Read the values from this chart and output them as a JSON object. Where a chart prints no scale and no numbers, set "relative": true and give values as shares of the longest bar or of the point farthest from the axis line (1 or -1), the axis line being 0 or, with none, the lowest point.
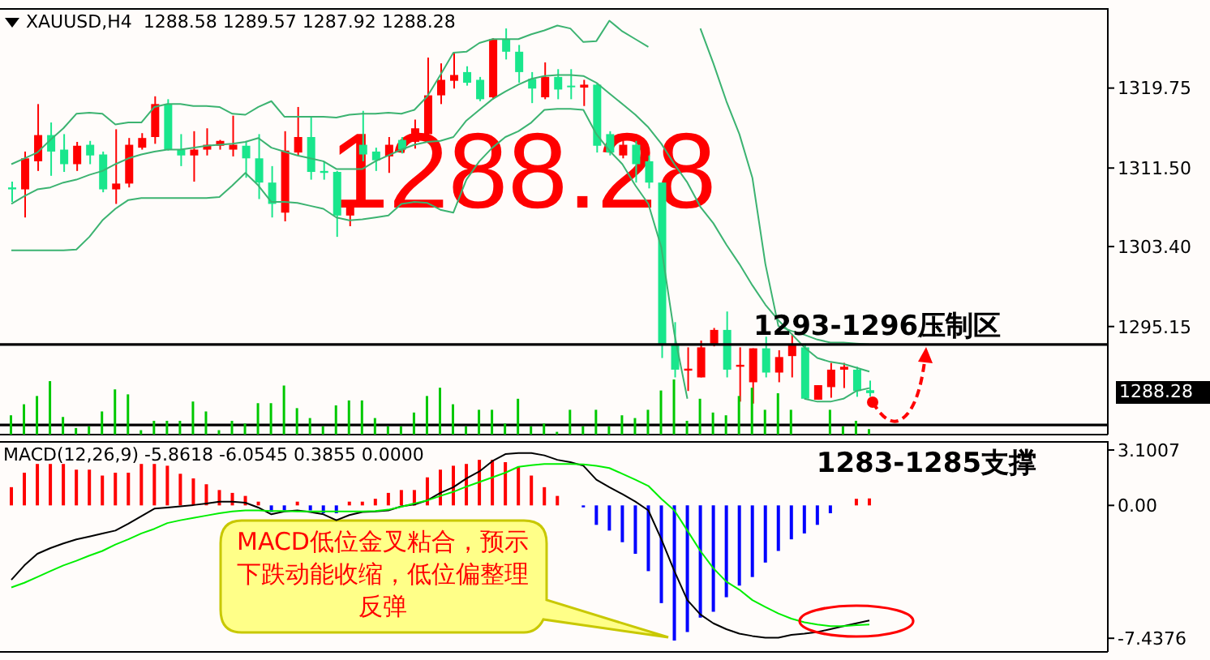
{
  "chart_data": [
    {
      "type": "candlestick",
      "title": "XAUUSD,H4  1288.58 1289.57 1287.92 1288.28",
      "categories": [
        null,
        null,
        null,
        null,
        null,
        null,
        null,
        null,
        null,
        null,
        null,
        null,
        null,
        null,
        null,
        null,
        null,
        null,
        null,
        null,
        null,
        null,
        null,
        null,
        null,
        null,
        null,
        null,
        null,
        null,
        null,
        null,
        null,
        null,
        null,
        null,
        null,
        null,
        null,
        null,
        null,
        null,
        null,
        null,
        null,
        null,
        null,
        null,
        null,
        null,
        null,
        null,
        null,
        null,
        null,
        null,
        null,
        null,
        null,
        null,
        null,
        null,
        null,
        null,
        null,
        null,
        null
      ],
      "ohlc": [
        [
          1309.5,
          1310.1,
          1308.0,
          1309.3
        ],
        [
          1309.3,
          1313.2,
          1306.4,
          1312.5
        ],
        [
          1312.2,
          1318.1,
          1311.2,
          1314.9
        ],
        [
          1314.9,
          1316.2,
          1310.7,
          1313.2
        ],
        [
          1313.4,
          1315.0,
          1311.1,
          1311.9
        ],
        [
          1311.9,
          1314.2,
          1311.2,
          1313.8
        ],
        [
          1313.9,
          1314.3,
          1311.9,
          1312.8
        ],
        [
          1312.9,
          1313.2,
          1309.0,
          1309.3
        ],
        [
          1309.3,
          1315.5,
          1307.8,
          1309.9
        ],
        [
          1309.9,
          1314.6,
          1309.5,
          1313.9
        ],
        [
          1313.6,
          1315.1,
          1313.4,
          1314.6
        ],
        [
          1314.7,
          1318.9,
          1314.0,
          1318.1
        ],
        [
          1318.1,
          1318.6,
          1313.3,
          1313.4
        ],
        [
          1313.4,
          1315.0,
          1311.7,
          1312.8
        ],
        [
          1312.8,
          1315.3,
          1310.1,
          1313.4
        ],
        [
          1313.4,
          1315.6,
          1312.8,
          1313.9
        ],
        [
          1313.8,
          1314.4,
          1313.4,
          1314.3
        ],
        [
          1313.4,
          1316.9,
          1312.7,
          1313.9
        ],
        [
          1313.8,
          1314.3,
          1310.5,
          1312.5
        ],
        [
          1312.5,
          1315.0,
          1308.3,
          1310.0
        ],
        [
          1310.0,
          1311.7,
          1306.4,
          1307.8
        ],
        [
          1306.9,
          1315.3,
          1306.0,
          1313.3
        ],
        [
          1313.1,
          1317.8,
          1312.8,
          1314.7
        ],
        [
          1314.7,
          1316.8,
          1310.3,
          1311.1
        ],
        [
          1311.2,
          1312.2,
          1310.3,
          1311.0
        ],
        [
          1311.1,
          1311.2,
          1304.4,
          1306.6
        ],
        [
          1306.6,
          1308.0,
          1305.5,
          1307.8
        ],
        [
          1313.9,
          1317.4,
          1312.2,
          1312.9
        ],
        [
          1313.2,
          1313.6,
          1311.2,
          1312.3
        ],
        [
          1312.7,
          1314.7,
          1311.0,
          1313.9
        ],
        [
          1314.4,
          1314.7,
          1313.0,
          1313.4
        ],
        [
          1314.2,
          1316.5,
          1313.5,
          1315.6
        ],
        [
          1315.0,
          1322.9,
          1314.4,
          1319.0
        ],
        [
          1319.0,
          1322.3,
          1318.1,
          1320.6
        ],
        [
          1320.5,
          1323.4,
          1319.7,
          1321.1
        ],
        [
          1321.4,
          1322.0,
          1320.0,
          1320.3
        ],
        [
          1320.6,
          1320.9,
          1318.4,
          1318.6
        ],
        [
          1318.8,
          1324.9,
          1318.6,
          1324.8
        ],
        [
          1324.8,
          1325.9,
          1322.7,
          1323.5
        ],
        [
          1323.5,
          1324.2,
          1320.3,
          1321.4
        ],
        [
          1320.7,
          1321.4,
          1318.2,
          1319.7
        ],
        [
          1318.8,
          1322.4,
          1318.6,
          1320.9
        ],
        [
          1320.9,
          1321.7,
          1318.6,
          1319.6
        ],
        [
          1320.0,
          1321.7,
          1318.6,
          1319.9
        ],
        [
          1319.8,
          1320.6,
          1317.9,
          1320.1
        ],
        [
          1320.1,
          1320.3,
          1313.1,
          1313.8
        ],
        [
          1315.0,
          1315.3,
          1312.8,
          1313.1
        ],
        [
          1312.8,
          1314.3,
          1312.5,
          1313.9
        ],
        [
          1313.9,
          1314.3,
          1310.0,
          1311.9
        ],
        [
          1312.2,
          1312.8,
          1309.4,
          1310.0
        ],
        [
          1310.0,
          1310.0,
          1291.9,
          1293.3
        ],
        [
          1293.3,
          1295.6,
          1289.9,
          1290.7
        ],
        [
          1290.6,
          1293.0,
          1288.5,
          1290.8
        ],
        [
          1289.9,
          1293.7,
          1289.9,
          1293.0
        ],
        [
          1293.3,
          1295.0,
          1293.1,
          1294.8
        ],
        [
          1294.8,
          1296.7,
          1289.9,
          1290.7
        ],
        [
          1291.0,
          1293.0,
          1287.4,
          1291.2
        ],
        [
          1289.4,
          1292.9,
          1287.2,
          1292.9
        ],
        [
          1292.9,
          1294.1,
          1289.9,
          1290.4
        ],
        [
          1290.4,
          1292.7,
          1289.4,
          1292.0
        ],
        [
          1292.1,
          1294.4,
          1289.9,
          1293.3
        ],
        [
          1293.0,
          1293.2,
          1287.6,
          1287.7
        ],
        [
          1287.6,
          1289.1,
          1287.6,
          1289.1
        ],
        [
          1288.9,
          1291.4,
          1287.8,
          1290.7
        ],
        [
          1290.7,
          1291.4,
          1288.8,
          1291.0
        ],
        [
          1290.7,
          1291.0,
          1287.9,
          1288.5
        ],
        [
          1288.58,
          1289.57,
          1287.92,
          1288.28
        ]
      ],
      "colors": [
        "#19e68c",
        "#ff0000",
        "#ff0000",
        "#19e68c",
        "#19e68c",
        "#ff0000",
        "#19e68c",
        "#19e68c",
        "#ff0000",
        "#ff0000",
        "#ff0000",
        "#ff0000",
        "#19e68c",
        "#19e68c",
        "#ff0000",
        "#ff0000",
        "#ff0000",
        "#ff0000",
        "#19e68c",
        "#19e68c",
        "#19e68c",
        "#ff0000",
        "#ff0000",
        "#19e68c",
        "#19e68c",
        "#19e68c",
        "#ff0000",
        "#19e68c",
        "#19e68c",
        "#ff0000",
        "#19e68c",
        "#ff0000",
        "#ff0000",
        "#ff0000",
        "#ff0000",
        "#19e68c",
        "#19e68c",
        "#ff0000",
        "#19e68c",
        "#19e68c",
        "#19e68c",
        "#ff0000",
        "#19e68c",
        "#19e68c",
        "#ff0000",
        "#19e68c",
        "#19e68c",
        "#ff0000",
        "#19e68c",
        "#19e68c",
        "#19e68c",
        "#19e68c",
        "#ff0000",
        "#ff0000",
        "#ff0000",
        "#19e68c",
        "#ff0000",
        "#ff0000",
        "#19e68c",
        "#ff0000",
        "#ff0000",
        "#19e68c",
        "#ff0000",
        "#ff0000",
        "#ff0000",
        "#19e68c",
        "#19e68c"
      ],
      "series": [
        {
          "type": "line",
          "color": "#3cb371",
          "values": [
            1311.9,
            1312.5,
            1313.1,
            1314.4,
            1315.6,
            1317.1,
            1317.2,
            1317.1,
            1316.0,
            1316.2,
            1316.2,
            1317.8,
            1318.1,
            1318.1,
            1317.9,
            1317.9,
            1317.8,
            1317.1,
            1317.0,
            1317.8,
            1318.4,
            1316.8,
            1316.8,
            1316.8,
            1316.8,
            1316.7,
            1317.0,
            1317.1,
            1317.1,
            1317.2,
            1317.1,
            1317.5,
            1318.9,
            1321.1,
            1323.4,
            1323.5,
            1324.4,
            1324.8,
            1324.8,
            1324.8,
            1325.3,
            1325.7,
            1326.2,
            1325.9,
            1324.5,
            1324.6,
            1326.7,
            1325.6,
            1324.8,
            1324.0,
            null,
            null,
            null,
            1325.9,
            1322.3,
            1318.4,
            1315.0,
            1310.5,
            1301.6,
            1295.2,
            1294.7,
            1294.3,
            1293.8,
            1293.5,
            1293.5,
            1293.4,
            1293.3
          ]
        },
        {
          "type": "line",
          "color": "#3cb371",
          "values": [
            1307.8,
            1308.6,
            1309.3,
            1309.5,
            1310.0,
            1310.3,
            1310.8,
            1311.2,
            1311.9,
            1312.5,
            1312.9,
            1313.2,
            1313.4,
            1313.4,
            1313.6,
            1313.8,
            1313.9,
            1314.0,
            1314.2,
            1314.6,
            1313.6,
            1313.2,
            1312.8,
            1312.5,
            1312.2,
            1311.4,
            1311.4,
            1311.4,
            1312.2,
            1312.8,
            1313.4,
            1313.9,
            1314.2,
            1314.3,
            1314.7,
            1316.4,
            1317.5,
            1318.6,
            1319.4,
            1320.1,
            1320.7,
            1321.0,
            1321.1,
            1321.1,
            1321.0,
            1320.3,
            1319.2,
            1318.1,
            1317.0,
            1315.7,
            1314.0,
            1311.9,
            1310.0,
            1307.5,
            1305.8,
            1303.6,
            1301.6,
            1299.4,
            1297.4,
            1295.8,
            1294.4,
            1293.0,
            1291.9,
            1291.5,
            1291.3,
            1290.9,
            1290.5
          ]
        },
        {
          "type": "line",
          "color": "#3cb371",
          "values": [
            1303.0,
            1303.0,
            1303.0,
            1303.0,
            1303.0,
            1303.1,
            1304.4,
            1306.1,
            1307.3,
            1308.2,
            1308.4,
            1308.4,
            1308.4,
            1308.4,
            1308.4,
            1308.4,
            1308.5,
            1309.7,
            1311.0,
            1309.7,
            1308.0,
            1308.0,
            1307.9,
            1307.6,
            1307.3,
            1306.4,
            1306.1,
            1306.2,
            1306.4,
            1306.6,
            1307.8,
            1308.0,
            1307.9,
            1307.2,
            1306.9,
            1310.3,
            1312.2,
            1313.6,
            1314.7,
            1315.3,
            1316.2,
            1317.5,
            1317.6,
            1317.6,
            1317.5,
            1315.0,
            1313.3,
            1311.9,
            1309.7,
            1307.8,
            1303.3,
            1294.4,
            1287.7,
            null,
            null,
            null,
            null,
            null,
            null,
            null,
            null,
            1287.7,
            1287.4,
            1287.4,
            1287.7,
            1288.5,
            1288.8
          ]
        }
      ],
      "ylim": [
        1284,
        1328
      ],
      "yticks": [
        1295.15,
        {
          "value": 1303.4,
          "label": "1303.40"
        },
        {
          "value": 1311.5,
          "label": "1311.50"
        },
        1319.75
      ],
      "ref_lines": [
        {
          "axis": "y",
          "value": 1293.3,
          "label": "1293-1296压制区",
          "color": "#000000"
        },
        {
          "axis": "y",
          "value": 1285.0,
          "label": "1283-1285支撑",
          "color": "#000000"
        }
      ],
      "annotations": [
        "1288.28",
        "1288.28"
      ],
      "tick_labels": "y"
    },
    {
      "type": "bar",
      "relative": true,
      "color": "#00c800",
      "categories": [
        null,
        null,
        null,
        null,
        null,
        null,
        null,
        null,
        null,
        null,
        null,
        null,
        null,
        null,
        null,
        null,
        null,
        null,
        null,
        null,
        null,
        null,
        null,
        null,
        null,
        null,
        null,
        null,
        null,
        null,
        null,
        null,
        null,
        null,
        null,
        null,
        null,
        null,
        null,
        null,
        null,
        null,
        null,
        null,
        null,
        null,
        null,
        null,
        null,
        null,
        null,
        null,
        null,
        null,
        null,
        null,
        null,
        null,
        null,
        null,
        null,
        null,
        null,
        null,
        null,
        null,
        null
      ],
      "values": [
        0.35,
        0.55,
        0.7,
        0.97,
        0.32,
        0.12,
        0.15,
        0.42,
        0.82,
        0.73,
        0.08,
        0.25,
        0.25,
        0.25,
        0.6,
        0.42,
        0.08,
        0.25,
        0.2,
        0.57,
        0.57,
        0.89,
        0.48,
        0.3,
        0.15,
        0.53,
        0.62,
        0.62,
        0.3,
        0.15,
        0.15,
        0.4,
        0.7,
        0.85,
        0.55,
        0.15,
        0.45,
        0.45,
        0.2,
        0.65,
        0.15,
        0.2,
        0.05,
        0.45,
        0.15,
        0.45,
        0.15,
        0.35,
        0.3,
        0.45,
        0.8,
        1,
        0.25,
        0.65,
        0.4,
        0.35,
        0.7,
        0.85,
        0.45,
        0.75,
        0.45,
        null,
        null,
        0.45,
        0.15,
        0.25,
        0.1
      ],
      "tick_labels": false
    },
    {
      "type": "bar",
      "title": "MACD(12,26,9) -5.8618 -6.0545 0.3855 0.0000",
      "categories": [
        null,
        null,
        null,
        null,
        null,
        null,
        null,
        null,
        null,
        null,
        null,
        null,
        null,
        null,
        null,
        null,
        null,
        null,
        null,
        null,
        null,
        null,
        null,
        null,
        null,
        null,
        null,
        null,
        null,
        null,
        null,
        null,
        null,
        null,
        null,
        null,
        null,
        null,
        null,
        null,
        null,
        null,
        null,
        null,
        null,
        null,
        null,
        null,
        null,
        null,
        null,
        null,
        null,
        null,
        null,
        null,
        null,
        null,
        null,
        null,
        null,
        null,
        null,
        null,
        null,
        null,
        null
      ],
      "series": [
        {
          "type": "bar",
          "values": [
            1.02,
            1.83,
            2.32,
            2.32,
            2.32,
            2.0,
            2.0,
            1.67,
            1.83,
            1.83,
            2.32,
            2.32,
            2.22,
            1.77,
            1.51,
            1.18,
            0.86,
            0.7,
            0.53,
            0.21,
            -0.37,
            -0.28,
            0.21,
            -0.28,
            -0.44,
            -0.44,
            0.21,
            0.21,
            0.37,
            0.7,
            0.86,
            0.86,
            1.57,
            2.0,
            2.22,
            2.32,
            2.55,
            2.55,
            2.42,
            2.16,
            1.67,
            1.02,
            0.53,
            null,
            -0.11,
            -1.09,
            -1.41,
            -2.06,
            -2.71,
            -3.68,
            -5.47,
            -7.57,
            -7.09,
            -6.28,
            -5.95,
            -5.14,
            -4.49,
            -4.01,
            -3.2,
            -2.55,
            -1.9,
            -1.57,
            -1.09,
            -0.44,
            null,
            0.37,
            0.39
          ],
          "colors": [
            "#ff0000",
            "#ff0000",
            "#ff0000",
            "#ff0000",
            "#ff0000",
            "#ff0000",
            "#ff0000",
            "#ff0000",
            "#ff0000",
            "#ff0000",
            "#ff0000",
            "#ff0000",
            "#ff0000",
            "#ff0000",
            "#ff0000",
            "#ff0000",
            "#ff0000",
            "#ff0000",
            "#ff0000",
            "#ff0000",
            "#0000ff",
            "#0000ff",
            "#ff0000",
            "#0000ff",
            "#0000ff",
            "#0000ff",
            "#ff0000",
            "#ff0000",
            "#ff0000",
            "#ff0000",
            "#ff0000",
            "#ff0000",
            "#ff0000",
            "#ff0000",
            "#ff0000",
            "#ff0000",
            "#ff0000",
            "#ff0000",
            "#ff0000",
            "#ff0000",
            "#ff0000",
            "#ff0000",
            "#ff0000",
            null,
            "#0000ff",
            "#0000ff",
            "#0000ff",
            "#0000ff",
            "#0000ff",
            "#0000ff",
            "#0000ff",
            "#0000ff",
            "#0000ff",
            "#0000ff",
            "#0000ff",
            "#0000ff",
            "#0000ff",
            "#0000ff",
            "#0000ff",
            "#0000ff",
            "#0000ff",
            "#0000ff",
            "#0000ff",
            "#0000ff",
            null,
            "#ff0000",
            "#ff0000"
          ]
        },
        {
          "type": "line",
          "color": "#000000",
          "values": [
            -4.17,
            -3.36,
            -2.71,
            -2.39,
            -2.13,
            -1.9,
            -1.74,
            -1.57,
            -1.41,
            -1.02,
            -0.6,
            -0.18,
            -0.12,
            -0.05,
            0.02,
            0.11,
            0.21,
            0.21,
            0.15,
            -0.12,
            -0.5,
            -0.34,
            -0.28,
            -0.37,
            -0.5,
            -0.83,
            -0.54,
            -0.37,
            -0.34,
            -0.28,
            -0.05,
            0.05,
            0.28,
            0.7,
            1.02,
            1.51,
            1.9,
            2.48,
            2.87,
            2.93,
            2.93,
            2.8,
            2.55,
            2.42,
            2.22,
            1.44,
            1.02,
            0.63,
            0.21,
            -0.28,
            -1.9,
            -3.68,
            -5.3,
            -6.11,
            -6.6,
            -6.93,
            -7.18,
            -7.31,
            -7.41,
            -7.41,
            -7.25,
            -7.18,
            -7.09,
            -6.93,
            -6.76,
            -6.6,
            -6.44
          ]
        },
        {
          "type": "line",
          "color": "#00ee00",
          "values": [
            -4.59,
            -4.33,
            -4.01,
            -3.68,
            -3.36,
            -3.1,
            -2.81,
            -2.55,
            -2.19,
            -1.9,
            -1.57,
            -1.31,
            -0.99,
            -0.83,
            -0.7,
            -0.57,
            -0.44,
            -0.34,
            -0.28,
            -0.28,
            -0.31,
            -0.31,
            -0.34,
            -0.34,
            -0.34,
            -0.34,
            -0.34,
            -0.34,
            -0.31,
            -0.24,
            -0.08,
            0.11,
            0.28,
            0.53,
            0.76,
            1.05,
            1.31,
            1.57,
            1.83,
            2.16,
            2.25,
            2.32,
            2.32,
            2.32,
            2.29,
            2.22,
            2.09,
            1.77,
            1.44,
            1.09,
            0.37,
            -0.28,
            -1.41,
            -2.55,
            -3.52,
            -4.27,
            -4.72,
            -5.3,
            -5.69,
            -6.05,
            -6.34,
            -6.54,
            -6.67,
            -6.76,
            -6.76,
            -6.7,
            -6.67
          ]
        }
      ],
      "ylim": [
        -8.2,
        3.6
      ],
      "yticks": [
        3.1007,
        {
          "value": 0,
          "label": "0.00"
        },
        -7.4376
      ],
      "annotations": [
        "MACD低位金叉粘合，预示下跌动能收缩，低位偏整理反弹"
      ],
      "tick_labels": "y"
    }
  ]
}
